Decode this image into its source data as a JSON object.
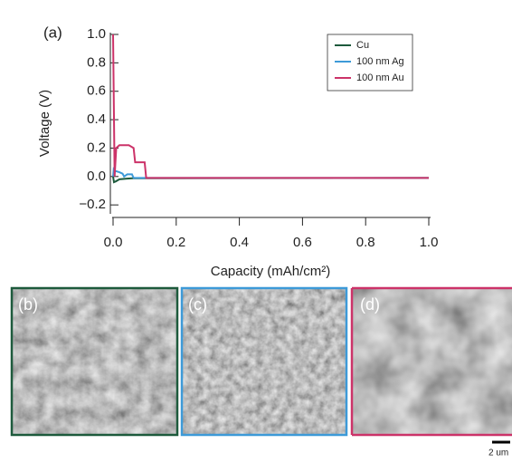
{
  "chart_data": {
    "type": "line",
    "panel_label": "(a)",
    "x_label": "Capacity (mAh/cm²)",
    "y_label": "Voltage (V)",
    "xlim": [
      0,
      1
    ],
    "ylim": [
      -0.25,
      1.0
    ],
    "xticks": [
      {
        "value": 0,
        "label": "0.0"
      },
      {
        "value": 0.2,
        "label": "0.2"
      },
      {
        "value": 0.4,
        "label": "0.4"
      },
      {
        "value": 0.6,
        "label": "0.6"
      },
      {
        "value": 0.8,
        "label": "0.8"
      },
      {
        "value": 1,
        "label": "1.0"
      }
    ],
    "yticks": [
      {
        "value": -0.2,
        "label": "−0.2"
      },
      {
        "value": 0,
        "label": "0.0"
      },
      {
        "value": 0.2,
        "label": "0.2"
      },
      {
        "value": 0.4,
        "label": "0.4"
      },
      {
        "value": 0.6,
        "label": "0.6"
      },
      {
        "value": 0.8,
        "label": "0.8"
      },
      {
        "value": 1,
        "label": "1.0"
      }
    ],
    "series": [
      {
        "name": "Cu",
        "color": "#1d5a3c",
        "x": [
          0.0,
          0.003,
          0.008,
          0.02,
          0.04,
          0.06,
          1.0
        ],
        "values": [
          0.0,
          -0.04,
          -0.035,
          -0.02,
          -0.015,
          -0.012,
          -0.01
        ]
      },
      {
        "name": "100 nm Ag",
        "color": "#3d9ad8",
        "x": [
          0.0,
          0.002,
          0.005,
          0.02,
          0.03,
          0.035,
          0.045,
          0.06,
          0.065,
          1.0
        ],
        "values": [
          0.0,
          0.05,
          0.04,
          0.03,
          0.02,
          0.0,
          0.015,
          0.015,
          -0.01,
          -0.01
        ]
      },
      {
        "name": "100 nm Au",
        "color": "#cc3369",
        "x": [
          0.0,
          0.005,
          0.01,
          0.02,
          0.05,
          0.065,
          0.07,
          0.09,
          0.1,
          0.105,
          1.0
        ],
        "values": [
          1.0,
          0.0,
          0.2,
          0.22,
          0.22,
          0.2,
          0.1,
          0.1,
          0.1,
          -0.01,
          -0.01
        ]
      }
    ]
  },
  "panels": [
    {
      "label": "(b)"
    },
    {
      "label": "(c)"
    },
    {
      "label": "(d)"
    }
  ],
  "scale_bar": "2 um"
}
